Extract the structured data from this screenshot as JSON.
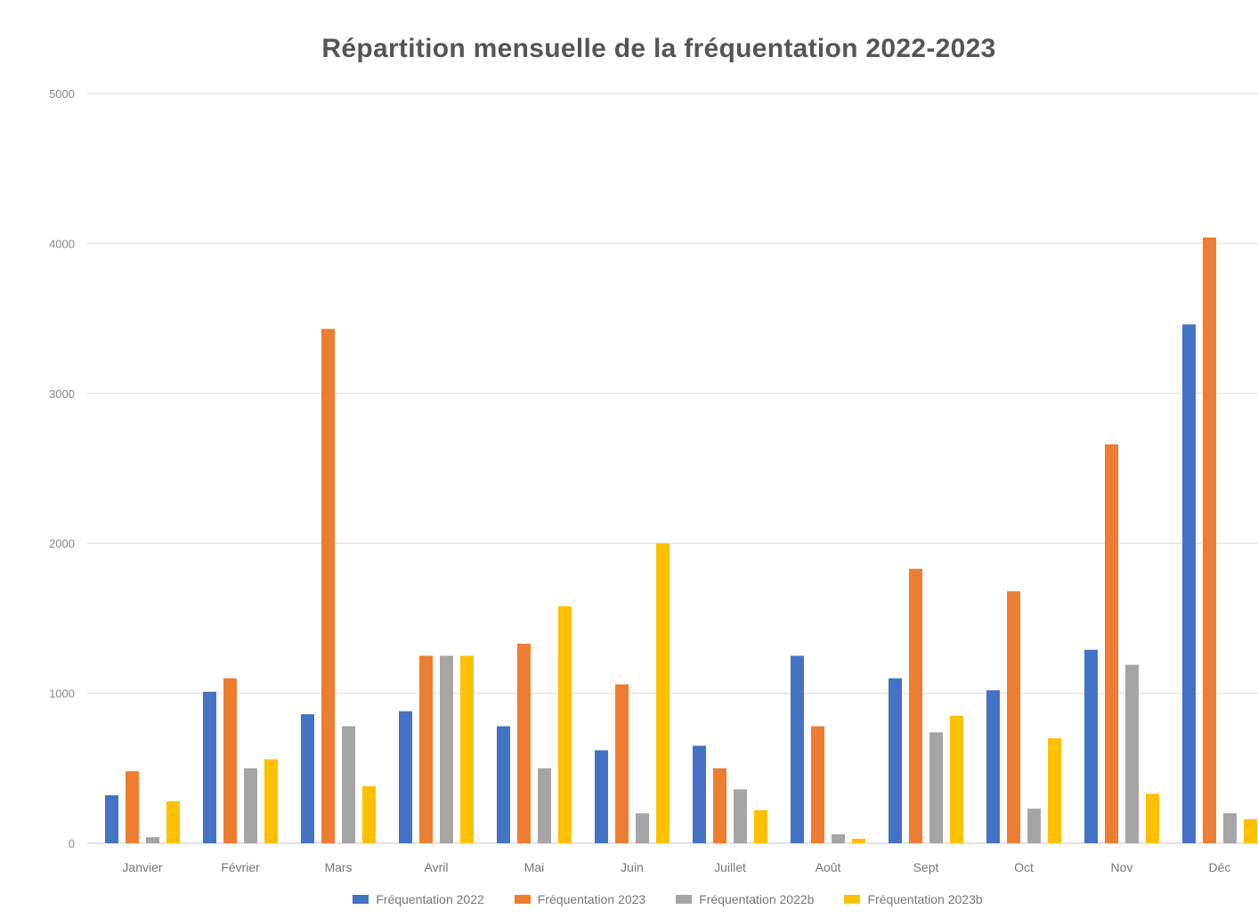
{
  "chart_data": {
    "type": "bar",
    "title": "Répartition mensuelle de la fréquentation 2022-2023",
    "categories": [
      "Janvier",
      "Février",
      "Mars",
      "Avril",
      "Mai",
      "Juin",
      "Juillet",
      "Août",
      "Sept",
      "Oct",
      "Nov",
      "Déc"
    ],
    "series": [
      {
        "name": "Fréquentation 2022",
        "color": "#4472C4",
        "values": [
          320,
          1010,
          860,
          880,
          780,
          620,
          650,
          1250,
          1100,
          1020,
          1290,
          3460
        ]
      },
      {
        "name": "Fréquentation 2023",
        "color": "#ED7D31",
        "values": [
          480,
          1100,
          3430,
          1250,
          1330,
          1060,
          500,
          780,
          1830,
          1680,
          2660,
          4040
        ]
      },
      {
        "name": "Fréquentation 2022b",
        "color": "#A5A5A5",
        "values": [
          40,
          500,
          780,
          1250,
          500,
          200,
          360,
          60,
          740,
          230,
          1190,
          200
        ]
      },
      {
        "name": "Fréquentation 2023b",
        "color": "#FFC000",
        "values": [
          280,
          560,
          380,
          1250,
          1580,
          2000,
          220,
          30,
          850,
          700,
          330,
          160
        ]
      }
    ],
    "ylim": [
      0,
      5000
    ],
    "yticks": [
      0,
      1000,
      2000,
      3000,
      4000,
      5000
    ],
    "grid": true,
    "legend_position": "bottom"
  }
}
